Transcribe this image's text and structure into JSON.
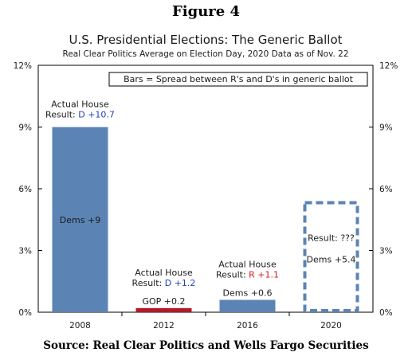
{
  "figure_label": "Figure 4",
  "source": "Source: Real Clear Politics and Wells Fargo Securities",
  "colors": {
    "bar": "#5b84b5",
    "gop_bar": "#b01a2a",
    "dem_text": "#1f3fbf",
    "rep_text": "#d01c1c"
  },
  "chart_data": {
    "type": "bar",
    "title": "U.S. Presidential Elections: The Generic Ballot",
    "subtitle": "Real Clear Politics Average on Election Day, 2020 Data as of Nov. 22",
    "legend_text": "Bars = Spread between R's and D's in generic ballot",
    "legend_position": "top-right",
    "categories": [
      "2008",
      "2012",
      "2016",
      "2020"
    ],
    "values": [
      9,
      0.2,
      0.6,
      5.4
    ],
    "bar_styles": [
      "solid",
      "solid-red",
      "solid",
      "dashed"
    ],
    "bar_labels": [
      "Dems +9",
      "GOP +0.2",
      "Dems +0.6",
      "Dems +5.4"
    ],
    "ylim": [
      0,
      12
    ],
    "yticks": [
      0,
      3,
      6,
      9,
      12
    ],
    "ytick_labels": [
      "0%",
      "3%",
      "6%",
      "9%",
      "12%"
    ],
    "grid": false,
    "annotations": [
      {
        "category": "2008",
        "line1": "Actual House",
        "prefix": "Result: ",
        "result": "D +10.7",
        "party": "dem"
      },
      {
        "category": "2012",
        "line1": "Actual House",
        "prefix": "Result: ",
        "result": "D +1.2",
        "party": "dem"
      },
      {
        "category": "2016",
        "line1": "Actual House",
        "prefix": "Result: ",
        "result": "R +1.1",
        "party": "rep"
      },
      {
        "category": "2020",
        "line1": "",
        "prefix": "Result: ",
        "result": "???",
        "party": "none"
      }
    ]
  }
}
